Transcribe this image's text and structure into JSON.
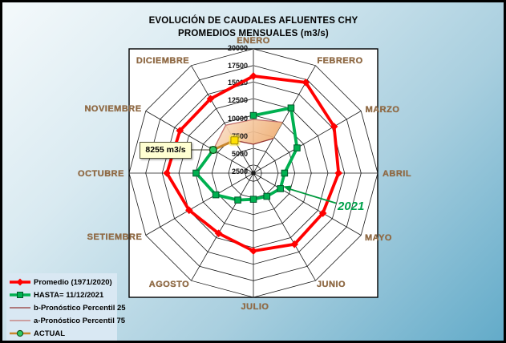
{
  "title": {
    "line1": "EVOLUCIÓN DE CAUDALES AFLUENTES CHY",
    "line2": "PROMEDIOS MENSUALES (m3/s)"
  },
  "annotations": {
    "callout": "8255 m3/s",
    "year": "2021"
  },
  "chart_data": {
    "type": "radar",
    "title": "EVOLUCIÓN DE CAUDALES AFLUENTES CHY - PROMEDIOS MENSUALES (m3/s)",
    "unit": "m3/s",
    "categories": [
      "ENERO",
      "FEBRERO",
      "MARZO",
      "ABRIL",
      "MAYO",
      "JUNIO",
      "JULIO",
      "AGOSTO",
      "SETIEMBRE",
      "OCTUBRE",
      "NOVIEMBRE",
      "DICIEMBRE"
    ],
    "r_axis": {
      "ticks": [
        2500,
        5000,
        7500,
        10000,
        12500,
        15000,
        17500,
        20000
      ],
      "min": 1250,
      "max": 20000,
      "grid": true
    },
    "series": [
      {
        "id": "promedio",
        "name": "Promedio (1971/2020)",
        "color": "#ff0000",
        "marker": "diamond",
        "closed": true,
        "values": [
          15900,
          17050,
          15300,
          14100,
          13350,
          13650,
          13000,
          11750,
          12450,
          14300,
          14050,
          14200
        ]
      },
      {
        "id": "hasta",
        "name": "HASTA= 11/12/2021",
        "color": "#00b050",
        "marker": "square",
        "closed": false,
        "values": [
          9950,
          12600,
          8850,
          5950,
          5950,
          5300,
          5200,
          5950,
          7800,
          9900,
          8255,
          null
        ]
      },
      {
        "id": "p25",
        "name": "b-Pronóstico Percentil 25",
        "color": "#953735",
        "marker": "none",
        "points": [
          {
            "month": "NOVIEMBRE",
            "value": 8255
          },
          {
            "month": "DICIEMBRE",
            "value": 6950
          },
          {
            "month": "ENERO",
            "value": 5600
          },
          {
            "month": "FEBRERO",
            "value": 7300
          }
        ]
      },
      {
        "id": "p75",
        "name": "a-Pronóstico Percentil 75",
        "color": "#c4736f",
        "marker": "none",
        "points": [
          {
            "month": "NOVIEMBRE",
            "value": 8255
          },
          {
            "month": "DICIEMBRE",
            "value": 9600
          },
          {
            "month": "ENERO",
            "value": 9350
          },
          {
            "month": "FEBRERO",
            "value": 10100
          }
        ]
      },
      {
        "id": "actual",
        "name": "ACTUAL",
        "color": "#c8862e",
        "marker": "circle",
        "points": [
          {
            "month": "NOVIEMBRE",
            "value": 8255
          },
          {
            "month": "DICIEMBRE",
            "value": 6950
          }
        ]
      }
    ],
    "band": {
      "between": [
        "a-Pronóstico Percentil 75",
        "b-Pronóstico Percentil 25"
      ],
      "fill": "#f3bd8b"
    },
    "labeled_point": {
      "series": "ACTUAL",
      "month": "NOVIEMBRE",
      "label": "8255 m3/s"
    },
    "highlighted_point": {
      "series": "ACTUAL",
      "month": "DICIEMBRE"
    },
    "legend_position": "bottom-left"
  },
  "legend": {
    "items": [
      {
        "label": "Promedio (1971/2020)",
        "swatch": "thick-diamond",
        "color": "#ff0000"
      },
      {
        "label": "HASTA=  11/12/2021",
        "swatch": "thick-square",
        "color": "#00b050"
      },
      {
        "label": "b-Pronóstico Percentil 25",
        "swatch": "thin-line",
        "color": "#953735"
      },
      {
        "label": "a-Pronóstico Percentil 75",
        "swatch": "thin-line",
        "color": "#c4736f"
      },
      {
        "label": "ACTUAL",
        "swatch": "line-circle",
        "color": "#c8862e",
        "marker_color": "#2ec866"
      }
    ]
  },
  "colors": {
    "promedio": "#ff0000",
    "hasta": "#00b050",
    "p25": "#953735",
    "p75": "#c4736f",
    "actual_line": "#c8862e",
    "band": "#f3bd8b",
    "month_label": "#8f6a45",
    "plot_background": "#ffffff",
    "background_top": "#f4f9fb",
    "background_bottom": "#63abc9"
  }
}
